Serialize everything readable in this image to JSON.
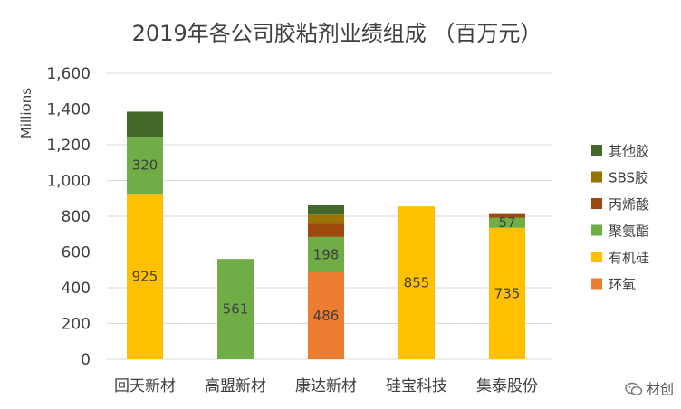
{
  "chart_data": {
    "type": "bar",
    "stacked": true,
    "title": "2019年各公司胶粘剂业绩组成 （百万元）",
    "ylabel": "Millions",
    "xlabel": "",
    "ylim": [
      0,
      1600
    ],
    "yticks": [
      "0",
      "200",
      "400",
      "600",
      "800",
      "1,000",
      "1,200",
      "1,400",
      "1,600"
    ],
    "grid": true,
    "legend_position": "right",
    "categories": [
      "回天新材",
      "高盟新材",
      "康达新材",
      "硅宝科技",
      "集泰股份"
    ],
    "series": [
      {
        "name": "环氧",
        "color": "#ed7d31",
        "values": [
          0,
          0,
          486,
          0,
          0
        ]
      },
      {
        "name": "有机硅",
        "color": "#ffc000",
        "values": [
          925,
          0,
          0,
          855,
          735
        ]
      },
      {
        "name": "聚氨酯",
        "color": "#70ad47",
        "values": [
          320,
          561,
          198,
          0,
          57
        ]
      },
      {
        "name": "丙烯酸",
        "color": "#9e480e",
        "values": [
          0,
          0,
          80,
          0,
          25
        ]
      },
      {
        "name": "SBS胶",
        "color": "#997300",
        "values": [
          0,
          0,
          45,
          0,
          0
        ]
      },
      {
        "name": "其他胶",
        "color": "#43682b",
        "values": [
          140,
          0,
          55,
          0,
          0
        ]
      }
    ],
    "labeled_series": [
      "环氧",
      "有机硅",
      "聚氨酯"
    ]
  },
  "watermark": {
    "text": "材创"
  }
}
